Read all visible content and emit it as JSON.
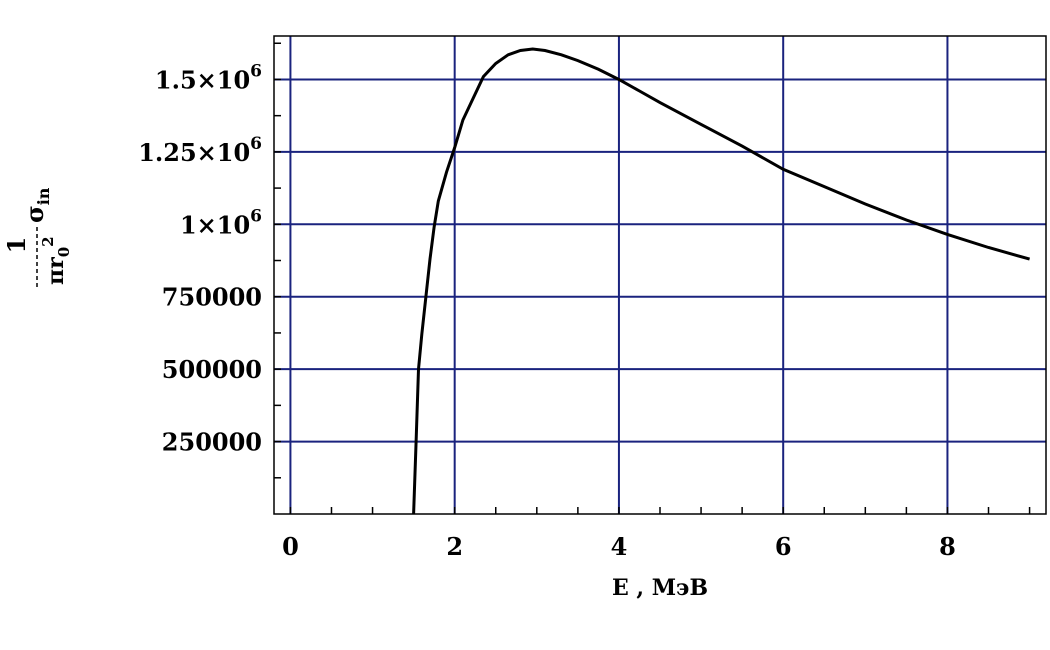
{
  "chart_data": {
    "type": "line",
    "title": "",
    "xlabel": "E , МэВ",
    "ylabel": {
      "numerator": "1",
      "denominator_base": "πr",
      "denominator_sub": "0",
      "denominator_sup": "2",
      "sigma": "σ",
      "sigma_sub": "in"
    },
    "xlim": [
      -0.2,
      9.2
    ],
    "ylim": [
      0,
      1650000
    ],
    "x_ticks": [
      0,
      2,
      4,
      6,
      8
    ],
    "x_tick_labels": [
      "0",
      "2",
      "4",
      "6",
      "8"
    ],
    "y_ticks": [
      250000,
      500000,
      750000,
      1000000,
      1250000,
      1500000
    ],
    "y_tick_labels": [
      {
        "text": "250000"
      },
      {
        "text": "500000"
      },
      {
        "text": "750000"
      },
      {
        "text": "1",
        "exp": "6"
      },
      {
        "text": "1.25",
        "exp": "6"
      },
      {
        "text": "1.5",
        "exp": "6"
      }
    ],
    "grid": true,
    "grid_color": "#1a237e",
    "line_color": "#000000",
    "series": [
      {
        "x": [
          1.5,
          1.53,
          1.56,
          1.6,
          1.65,
          1.7,
          1.75,
          1.8,
          1.9,
          2.0,
          2.1,
          2.2,
          2.35,
          2.5,
          2.65,
          2.8,
          2.95,
          3.1,
          3.3,
          3.5,
          3.75,
          4.0,
          4.25,
          4.5,
          5.0,
          5.5,
          6.0,
          6.5,
          7.0,
          7.5,
          8.0,
          8.5,
          9.0
        ],
        "y": [
          0,
          250000,
          500000,
          620000,
          750000,
          880000,
          990000,
          1080000,
          1180000,
          1265000,
          1360000,
          1420000,
          1510000,
          1555000,
          1585000,
          1600000,
          1605000,
          1600000,
          1585000,
          1565000,
          1535000,
          1500000,
          1460000,
          1420000,
          1345000,
          1270000,
          1190000,
          1130000,
          1070000,
          1015000,
          965000,
          920000,
          880000
        ]
      }
    ]
  }
}
